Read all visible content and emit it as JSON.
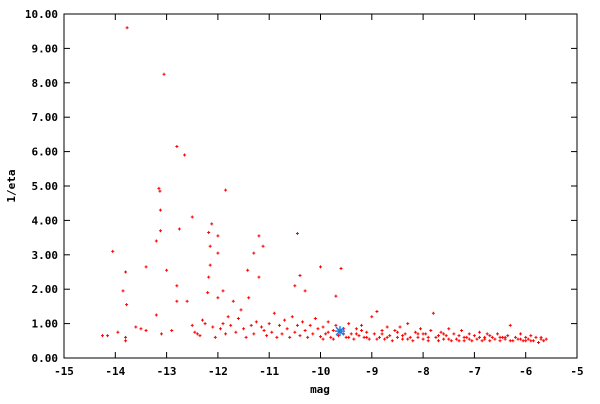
{
  "chart_data": {
    "type": "scatter",
    "title": "",
    "xlabel": "mag",
    "ylabel": "1/eta",
    "xlim": [
      -15,
      -5
    ],
    "ylim": [
      0,
      10
    ],
    "grid": false,
    "xticks": [
      "-15",
      "-14",
      "-13",
      "-12",
      "-11",
      "-10",
      "-9",
      "-8",
      "-7",
      "-6",
      "-5"
    ],
    "yticks": [
      "0.00",
      "1.00",
      "2.00",
      "3.00",
      "4.00",
      "5.00",
      "6.00",
      "7.00",
      "8.00",
      "9.00",
      "10.00"
    ],
    "colors": {
      "points": "#ff0000",
      "highlight": "#1e7fe0"
    },
    "highlight": {
      "x": -9.62,
      "y": 0.78
    },
    "points": [
      [
        -13.77,
        9.6
      ],
      [
        -13.05,
        8.25
      ],
      [
        -12.8,
        6.15
      ],
      [
        -12.65,
        5.9
      ],
      [
        -11.85,
        4.88
      ],
      [
        -13.15,
        4.93
      ],
      [
        -13.13,
        4.85
      ],
      [
        -13.12,
        4.3
      ],
      [
        -12.5,
        4.1
      ],
      [
        -13.12,
        3.7
      ],
      [
        -12.75,
        3.75
      ],
      [
        -13.2,
        3.4
      ],
      [
        -12.18,
        3.65
      ],
      [
        -12.12,
        3.9
      ],
      [
        -12.0,
        3.55
      ],
      [
        -11.2,
        3.55
      ],
      [
        -10.45,
        3.62
      ],
      [
        -12.15,
        3.25
      ],
      [
        -12.0,
        3.05
      ],
      [
        -11.3,
        3.05
      ],
      [
        -11.12,
        3.25
      ],
      [
        -10.0,
        2.65
      ],
      [
        -9.6,
        2.6
      ],
      [
        -14.05,
        3.1
      ],
      [
        -13.8,
        2.5
      ],
      [
        -13.85,
        1.95
      ],
      [
        -13.78,
        1.55
      ],
      [
        -13.4,
        2.65
      ],
      [
        -13.0,
        2.55
      ],
      [
        -12.15,
        2.7
      ],
      [
        -12.18,
        2.35
      ],
      [
        -11.42,
        2.55
      ],
      [
        -11.2,
        2.35
      ],
      [
        -10.4,
        2.4
      ],
      [
        -10.5,
        2.1
      ],
      [
        -10.3,
        1.95
      ],
      [
        -9.7,
        1.8
      ],
      [
        -14.25,
        0.65
      ],
      [
        -14.15,
        0.65
      ],
      [
        -13.95,
        0.75
      ],
      [
        -13.8,
        0.6
      ],
      [
        -13.8,
        0.5
      ],
      [
        -13.6,
        0.9
      ],
      [
        -13.5,
        0.85
      ],
      [
        -13.4,
        0.8
      ],
      [
        -13.2,
        1.25
      ],
      [
        -13.1,
        0.7
      ],
      [
        -12.9,
        0.8
      ],
      [
        -12.8,
        1.65
      ],
      [
        -12.6,
        1.65
      ],
      [
        -12.5,
        0.95
      ],
      [
        -12.4,
        0.7
      ],
      [
        -12.3,
        1.1
      ],
      [
        -12.2,
        1.9
      ],
      [
        -11.9,
        1.95
      ],
      [
        -11.7,
        1.65
      ],
      [
        -11.55,
        1.4
      ],
      [
        -11.4,
        1.75
      ],
      [
        -11.1,
        0.8
      ],
      [
        -12.8,
        2.1
      ],
      [
        -12.0,
        1.75
      ],
      [
        -11.8,
        1.2
      ],
      [
        -12.45,
        0.75
      ],
      [
        -12.35,
        0.65
      ],
      [
        -12.25,
        1.0
      ],
      [
        -12.1,
        0.9
      ],
      [
        -12.05,
        0.6
      ],
      [
        -11.95,
        0.85
      ],
      [
        -11.9,
        1.0
      ],
      [
        -11.85,
        0.7
      ],
      [
        -11.75,
        0.95
      ],
      [
        -11.65,
        0.75
      ],
      [
        -11.6,
        1.15
      ],
      [
        -11.5,
        0.85
      ],
      [
        -11.45,
        0.6
      ],
      [
        -11.35,
        0.95
      ],
      [
        -11.3,
        0.7
      ],
      [
        -11.25,
        1.05
      ],
      [
        -11.15,
        0.9
      ],
      [
        -11.05,
        0.65
      ],
      [
        -11.0,
        1.0
      ],
      [
        -10.95,
        0.75
      ],
      [
        -10.9,
        1.3
      ],
      [
        -10.85,
        0.6
      ],
      [
        -10.8,
        0.95
      ],
      [
        -10.75,
        0.7
      ],
      [
        -10.7,
        1.1
      ],
      [
        -10.65,
        0.85
      ],
      [
        -10.6,
        0.6
      ],
      [
        -10.55,
        1.2
      ],
      [
        -10.5,
        0.75
      ],
      [
        -10.45,
        0.95
      ],
      [
        -10.4,
        0.65
      ],
      [
        -10.35,
        1.05
      ],
      [
        -10.3,
        0.8
      ],
      [
        -10.25,
        0.6
      ],
      [
        -10.2,
        0.95
      ],
      [
        -10.15,
        0.7
      ],
      [
        -10.1,
        1.15
      ],
      [
        -10.05,
        0.85
      ],
      [
        -10.0,
        0.62
      ],
      [
        -9.95,
        0.9
      ],
      [
        -9.9,
        0.7
      ],
      [
        -9.85,
        1.05
      ],
      [
        -9.8,
        0.6
      ],
      [
        -9.75,
        0.8
      ],
      [
        -9.7,
        0.95
      ],
      [
        -9.65,
        0.65
      ],
      [
        -9.55,
        0.85
      ],
      [
        -9.5,
        0.6
      ],
      [
        -9.45,
        1.0
      ],
      [
        -9.4,
        0.7
      ],
      [
        -9.35,
        0.55
      ],
      [
        -9.3,
        0.85
      ],
      [
        -9.25,
        0.65
      ],
      [
        -9.2,
        0.95
      ],
      [
        -9.15,
        0.6
      ],
      [
        -9.1,
        0.75
      ],
      [
        -9.05,
        0.55
      ],
      [
        -9.0,
        1.2
      ],
      [
        -8.95,
        0.7
      ],
      [
        -8.9,
        1.35
      ],
      [
        -8.85,
        0.6
      ],
      [
        -8.8,
        0.8
      ],
      [
        -8.75,
        0.55
      ],
      [
        -8.7,
        0.9
      ],
      [
        -8.65,
        0.65
      ],
      [
        -8.6,
        0.5
      ],
      [
        -8.55,
        0.8
      ],
      [
        -8.5,
        0.6
      ],
      [
        -8.45,
        0.9
      ],
      [
        -8.4,
        0.55
      ],
      [
        -8.35,
        0.7
      ],
      [
        -8.3,
        1.0
      ],
      [
        -8.25,
        0.6
      ],
      [
        -8.2,
        0.5
      ],
      [
        -8.15,
        0.75
      ],
      [
        -8.1,
        0.6
      ],
      [
        -8.05,
        0.85
      ],
      [
        -8.0,
        0.55
      ],
      [
        -7.95,
        0.7
      ],
      [
        -7.9,
        0.5
      ],
      [
        -7.85,
        0.8
      ],
      [
        -7.8,
        1.3
      ],
      [
        -7.75,
        0.6
      ],
      [
        -7.7,
        0.5
      ],
      [
        -7.65,
        0.75
      ],
      [
        -7.6,
        0.55
      ],
      [
        -7.55,
        0.65
      ],
      [
        -7.5,
        0.85
      ],
      [
        -7.45,
        0.5
      ],
      [
        -7.4,
        0.7
      ],
      [
        -7.35,
        0.55
      ],
      [
        -7.3,
        0.65
      ],
      [
        -7.25,
        0.8
      ],
      [
        -7.2,
        0.5
      ],
      [
        -7.15,
        0.6
      ],
      [
        -7.1,
        0.7
      ],
      [
        -7.05,
        0.5
      ],
      [
        -7.0,
        0.65
      ],
      [
        -6.95,
        0.55
      ],
      [
        -6.9,
        0.75
      ],
      [
        -6.85,
        0.5
      ],
      [
        -6.8,
        0.6
      ],
      [
        -6.75,
        0.7
      ],
      [
        -6.7,
        0.5
      ],
      [
        -6.65,
        0.6
      ],
      [
        -6.6,
        0.55
      ],
      [
        -6.55,
        0.7
      ],
      [
        -6.5,
        0.5
      ],
      [
        -6.45,
        0.6
      ],
      [
        -6.4,
        0.55
      ],
      [
        -6.35,
        0.65
      ],
      [
        -6.3,
        0.95
      ],
      [
        -6.25,
        0.5
      ],
      [
        -6.2,
        0.6
      ],
      [
        -6.15,
        0.55
      ],
      [
        -6.1,
        0.7
      ],
      [
        -6.05,
        0.5
      ],
      [
        -6.0,
        0.6
      ],
      [
        -5.95,
        0.55
      ],
      [
        -5.9,
        0.65
      ],
      [
        -5.85,
        0.5
      ],
      [
        -5.8,
        0.6
      ],
      [
        -5.75,
        0.45
      ],
      [
        -5.7,
        0.55
      ],
      [
        -5.65,
        0.5
      ],
      [
        -5.6,
        0.55
      ],
      [
        -9.95,
        0.55
      ],
      [
        -9.85,
        0.75
      ],
      [
        -9.75,
        0.55
      ],
      [
        -9.55,
        0.7
      ],
      [
        -9.45,
        0.6
      ],
      [
        -9.3,
        0.7
      ],
      [
        -9.1,
        0.6
      ],
      [
        -8.9,
        0.55
      ],
      [
        -8.7,
        0.6
      ],
      [
        -8.5,
        0.75
      ],
      [
        -8.3,
        0.55
      ],
      [
        -8.1,
        0.7
      ],
      [
        -7.9,
        0.6
      ],
      [
        -7.7,
        0.65
      ],
      [
        -7.5,
        0.55
      ],
      [
        -7.3,
        0.5
      ],
      [
        -7.1,
        0.55
      ],
      [
        -6.9,
        0.6
      ],
      [
        -6.7,
        0.65
      ],
      [
        -6.5,
        0.6
      ],
      [
        -6.3,
        0.5
      ],
      [
        -6.1,
        0.55
      ],
      [
        -5.9,
        0.5
      ],
      [
        -5.7,
        0.6
      ],
      [
        -9.2,
        0.8
      ],
      [
        -8.8,
        0.7
      ],
      [
        -8.4,
        0.65
      ],
      [
        -8.0,
        0.7
      ],
      [
        -7.6,
        0.7
      ],
      [
        -7.2,
        0.6
      ],
      [
        -6.8,
        0.55
      ],
      [
        -6.4,
        0.6
      ],
      [
        -6.0,
        0.5
      ]
    ]
  }
}
